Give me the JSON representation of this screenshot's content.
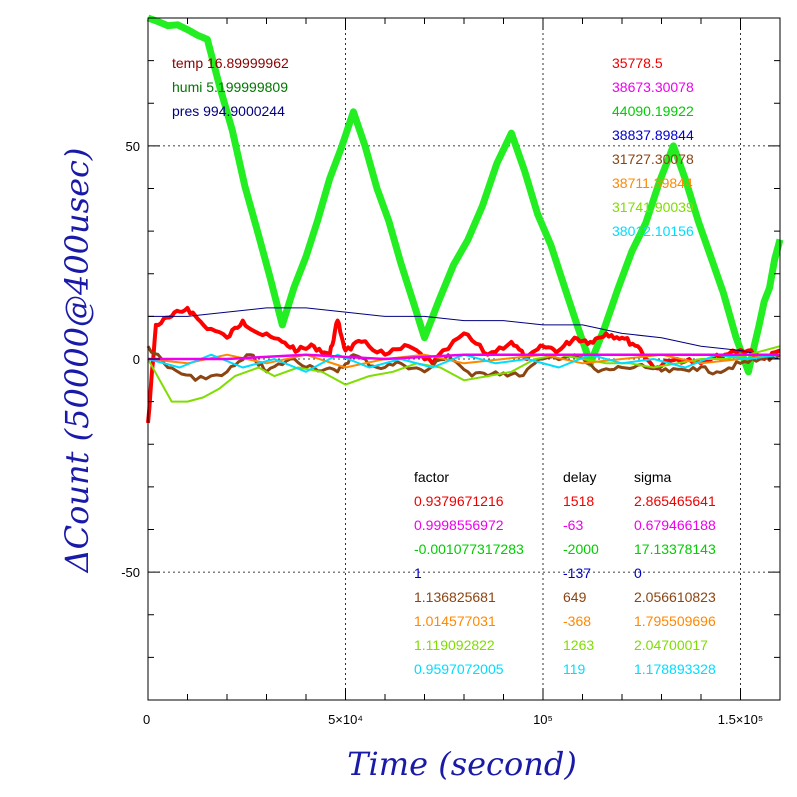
{
  "chart_data": {
    "type": "line",
    "xlabel": "Time (second)",
    "ylabel": "ΔCount (50000@400usec)",
    "xlim": [
      0,
      160000
    ],
    "ylim": [
      -80,
      80
    ],
    "x_ticks": [
      {
        "value": 0,
        "label": "0"
      },
      {
        "value": 50000,
        "label": "5×10⁴"
      },
      {
        "value": 100000,
        "label": "10⁵"
      },
      {
        "value": 150000,
        "label": "1.5×10⁵"
      }
    ],
    "y_ticks": [
      {
        "value": 50,
        "label": "50"
      },
      {
        "value": 0,
        "label": "0"
      },
      {
        "value": -50,
        "label": "-50"
      }
    ],
    "grid": true,
    "env_labels": [
      {
        "text": "temp 16.89999962",
        "color": "#8b0000"
      },
      {
        "text": "humi 5.199999809",
        "color": "#007700"
      },
      {
        "text": "pres 994.9000244",
        "color": "#000080"
      }
    ],
    "means_list": [
      {
        "text": "35778.5",
        "color": "#ee0000"
      },
      {
        "text": "38673.30078",
        "color": "#ee00ee"
      },
      {
        "text": "44090.19922",
        "color": "#00cc00"
      },
      {
        "text": "38837.89844",
        "color": "#0000cc"
      },
      {
        "text": "31727.30078",
        "color": "#8b4513"
      },
      {
        "text": "38711.39844",
        "color": "#ff8800"
      },
      {
        "text": "31741.90039",
        "color": "#7fdd00"
      },
      {
        "text": "38012.10156",
        "color": "#00ddff"
      }
    ],
    "fit_table": {
      "headers": [
        "factor",
        "delay",
        "sigma"
      ],
      "rows": [
        {
          "factor": "0.9379671216",
          "delay": "1518",
          "sigma": "2.865465641",
          "color": "#ee0000"
        },
        {
          "factor": "0.9998556972",
          "delay": "-63",
          "sigma": "0.679466188",
          "color": "#ee00ee"
        },
        {
          "factor": "-0.001077317283",
          "delay": "-2000",
          "sigma": "17.13378143",
          "color": "#00cc00"
        },
        {
          "factor": "1",
          "delay": "-137",
          "sigma": "0",
          "color": "#0000cc"
        },
        {
          "factor": "1.136825681",
          "delay": "649",
          "sigma": "2.056610823",
          "color": "#8b4513"
        },
        {
          "factor": "1.014577031",
          "delay": "-368",
          "sigma": "1.795509696",
          "color": "#ff8800"
        },
        {
          "factor": "1.119092822",
          "delay": "1263",
          "sigma": "2.04700017",
          "color": "#7fdd00"
        },
        {
          "factor": "0.9597072005",
          "delay": "119",
          "sigma": "1.178893328",
          "color": "#00ddff"
        }
      ]
    },
    "series": [
      {
        "color": "#22ee22",
        "width": 7,
        "x": [
          0,
          15000,
          34000,
          52000,
          70000,
          92000,
          112000,
          133000,
          152000,
          160000
        ],
        "y": [
          80,
          75,
          8,
          58,
          5,
          53,
          -1,
          50,
          -3,
          28
        ]
      },
      {
        "color": "#ff0000",
        "width": 4,
        "x": [
          0,
          2000,
          6000,
          10000,
          14000,
          20000,
          24000,
          28000,
          34000,
          38000,
          42000,
          46000,
          48000,
          50000,
          54000,
          60000,
          66000,
          72000,
          80000,
          86000,
          92000,
          96000,
          100000,
          104000,
          108000,
          112000,
          116000,
          120000,
          124000,
          128000,
          134000,
          140000,
          146000,
          152000,
          156000,
          160000
        ],
        "y": [
          -15,
          8,
          10,
          12,
          8,
          5,
          9,
          6,
          4,
          2,
          3,
          1,
          9,
          2,
          4,
          1,
          3,
          -1,
          6,
          1,
          4,
          0,
          3,
          2,
          5,
          4,
          6,
          5,
          3,
          -2,
          0,
          -1,
          1,
          2,
          0,
          2
        ]
      },
      {
        "color": "#000080",
        "width": 1,
        "x": [
          0,
          10000,
          20000,
          30000,
          40000,
          50000,
          60000,
          70000,
          80000,
          90000,
          100000,
          110000,
          120000,
          130000,
          140000,
          150000,
          160000
        ],
        "y": [
          10,
          10,
          11,
          12,
          12,
          11,
          10,
          10,
          9,
          9,
          8,
          8,
          6,
          5,
          3,
          2,
          0
        ]
      },
      {
        "color": "#8b4513",
        "width": 3,
        "x": [
          0,
          5000,
          12000,
          20000,
          26000,
          30000,
          36000,
          42000,
          48000,
          52000,
          58000,
          64000,
          70000,
          76000,
          82000,
          88000,
          94000,
          100000,
          108000,
          114000,
          120000,
          126000,
          132000,
          138000,
          144000,
          150000,
          156000,
          160000
        ],
        "y": [
          3,
          -2,
          -5,
          -3,
          1,
          -3,
          0,
          -2,
          -3,
          1,
          -2,
          -1,
          -3,
          1,
          -4,
          -3,
          -4,
          0,
          1,
          -3,
          -2,
          -2,
          -3,
          -2,
          -3,
          -1,
          0,
          1
        ]
      },
      {
        "color": "#7fdd00",
        "width": 2,
        "x": [
          0,
          3000,
          6000,
          10000,
          14000,
          18000,
          22000,
          28000,
          32000,
          38000,
          44000,
          50000,
          56000,
          62000,
          68000,
          74000,
          80000,
          86000,
          92000,
          98000,
          104000,
          110000,
          116000,
          122000,
          128000,
          134000,
          140000,
          146000,
          152000,
          160000
        ],
        "y": [
          0,
          -5,
          -10,
          -10,
          -9,
          -7,
          -4,
          -2,
          -4,
          -2,
          -3,
          -6,
          -4,
          -3,
          -1,
          -2,
          -5,
          -4,
          -3,
          0,
          1,
          0,
          -1,
          -1,
          -2,
          -1,
          0,
          0,
          1,
          3
        ]
      },
      {
        "color": "#ff8800",
        "width": 2,
        "x": [
          0,
          10000,
          20000,
          30000,
          40000,
          50000,
          60000,
          70000,
          80000,
          90000,
          100000,
          110000,
          120000,
          130000,
          140000,
          150000,
          160000
        ],
        "y": [
          0,
          -1,
          1,
          -1,
          1,
          -2,
          0,
          1,
          -1,
          0,
          1,
          -1,
          0,
          1,
          -1,
          0,
          1
        ]
      },
      {
        "color": "#00ddff",
        "width": 2,
        "x": [
          0,
          8000,
          16000,
          24000,
          32000,
          40000,
          48000,
          56000,
          64000,
          72000,
          80000,
          88000,
          96000,
          104000,
          112000,
          120000,
          128000,
          136000,
          144000,
          152000,
          160000
        ],
        "y": [
          0,
          -2,
          1,
          -2,
          0,
          -3,
          1,
          -2,
          0,
          -2,
          1,
          -1,
          0,
          -2,
          1,
          -1,
          0,
          -2,
          1,
          0,
          1
        ]
      },
      {
        "color": "#ee00ee",
        "width": 2.5,
        "x": [
          0,
          20000,
          40000,
          60000,
          80000,
          100000,
          120000,
          140000,
          160000
        ],
        "y": [
          0,
          0,
          1,
          0,
          1,
          1,
          1,
          1,
          1
        ]
      }
    ]
  }
}
